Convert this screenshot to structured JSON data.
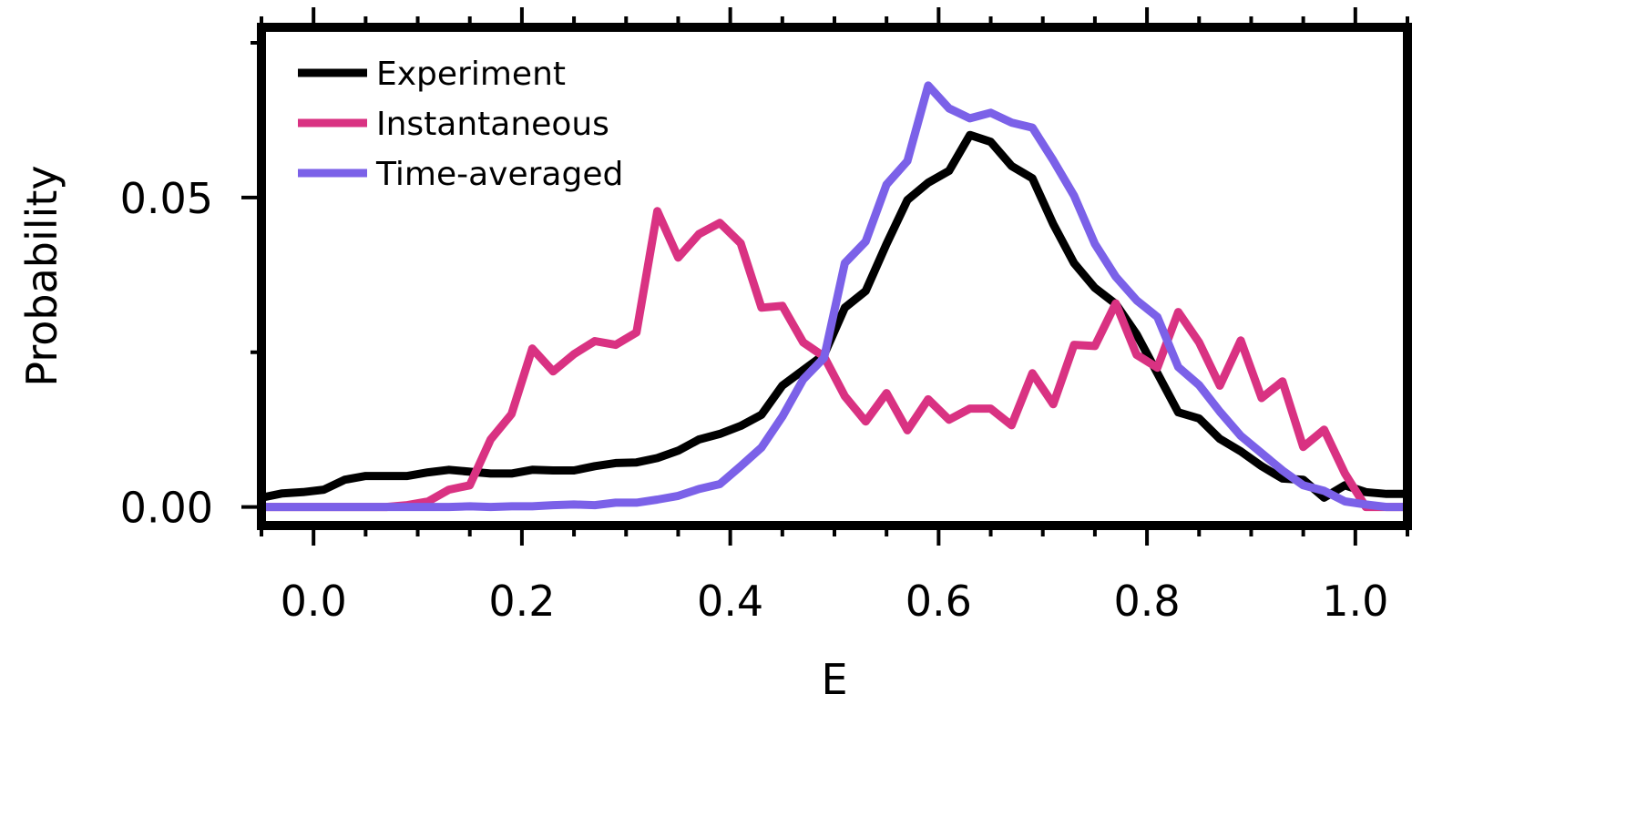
{
  "chart_data": {
    "type": "line",
    "title": "",
    "xlabel": "E",
    "ylabel": "Probability",
    "xlim": [
      -0.05,
      1.05
    ],
    "ylim": [
      -0.003,
      0.0775
    ],
    "grid": false,
    "legend_position": "top-left",
    "x_ticks": [
      0.0,
      0.2,
      0.4,
      0.6,
      0.8,
      1.0
    ],
    "x_tick_labels": [
      "0.0",
      "0.2",
      "0.4",
      "0.6",
      "0.8",
      "1.0"
    ],
    "y_ticks": [
      0.0,
      0.05
    ],
    "y_tick_labels": [
      "0.00",
      "0.05"
    ],
    "x": [
      -0.05,
      -0.03,
      -0.01,
      0.01,
      0.03,
      0.05,
      0.07,
      0.09,
      0.11,
      0.13,
      0.15,
      0.17,
      0.19,
      0.21,
      0.23,
      0.25,
      0.27,
      0.29,
      0.31,
      0.33,
      0.35,
      0.37,
      0.39,
      0.41,
      0.43,
      0.45,
      0.47,
      0.49,
      0.51,
      0.53,
      0.55,
      0.57,
      0.59,
      0.61,
      0.63,
      0.65,
      0.67,
      0.69,
      0.71,
      0.73,
      0.75,
      0.77,
      0.79,
      0.81,
      0.83,
      0.85,
      0.87,
      0.89,
      0.91,
      0.93,
      0.95,
      0.97,
      0.99,
      1.01,
      1.03,
      1.05
    ],
    "series": [
      {
        "name": "Experiment",
        "color": "#000000",
        "values": [
          0.0015,
          0.0022,
          0.0024,
          0.0028,
          0.0044,
          0.005,
          0.005,
          0.005,
          0.0056,
          0.006,
          0.0057,
          0.0054,
          0.0054,
          0.006,
          0.0059,
          0.0059,
          0.0066,
          0.0071,
          0.0072,
          0.0079,
          0.0091,
          0.0109,
          0.0118,
          0.0131,
          0.0149,
          0.0196,
          0.0221,
          0.0246,
          0.0322,
          0.0349,
          0.0425,
          0.0496,
          0.0524,
          0.0543,
          0.0601,
          0.059,
          0.0551,
          0.0531,
          0.0457,
          0.0394,
          0.0354,
          0.0328,
          0.0279,
          0.0216,
          0.0153,
          0.0143,
          0.011,
          0.009,
          0.0066,
          0.0046,
          0.0044,
          0.0015,
          0.0035,
          0.0024,
          0.0021,
          0.0021
        ]
      },
      {
        "name": "Instantaneous",
        "color": "#d93282",
        "values": [
          0,
          0,
          0,
          0,
          0,
          0,
          0,
          0.0003,
          0.0009,
          0.0028,
          0.0035,
          0.0109,
          0.015,
          0.0256,
          0.0219,
          0.0247,
          0.0268,
          0.0262,
          0.0282,
          0.0478,
          0.0403,
          0.0441,
          0.0459,
          0.0426,
          0.0322,
          0.0325,
          0.0266,
          0.0243,
          0.0179,
          0.0138,
          0.0184,
          0.0124,
          0.0174,
          0.0141,
          0.0159,
          0.0159,
          0.0132,
          0.0216,
          0.0166,
          0.0262,
          0.026,
          0.0329,
          0.0246,
          0.0225,
          0.0315,
          0.0266,
          0.0196,
          0.0269,
          0.0176,
          0.0203,
          0.0097,
          0.0125,
          0.0054,
          0,
          0,
          0
        ]
      },
      {
        "name": "Time-averaged",
        "color": "#7b61e8",
        "values": [
          0,
          0,
          0,
          0,
          0,
          0,
          0,
          0,
          0,
          0,
          0.0001,
          0,
          0.0001,
          0.0001,
          0.0003,
          0.0004,
          0.0003,
          0.0007,
          0.0007,
          0.0012,
          0.0018,
          0.0029,
          0.0037,
          0.0066,
          0.0096,
          0.0146,
          0.0206,
          0.0241,
          0.0394,
          0.0429,
          0.0521,
          0.0559,
          0.0681,
          0.0644,
          0.0628,
          0.0637,
          0.0621,
          0.0613,
          0.056,
          0.0503,
          0.0425,
          0.0372,
          0.0334,
          0.0307,
          0.0226,
          0.0197,
          0.0154,
          0.0115,
          0.0087,
          0.0059,
          0.0035,
          0.0026,
          0.0009,
          0.0004,
          0,
          0
        ]
      }
    ]
  }
}
